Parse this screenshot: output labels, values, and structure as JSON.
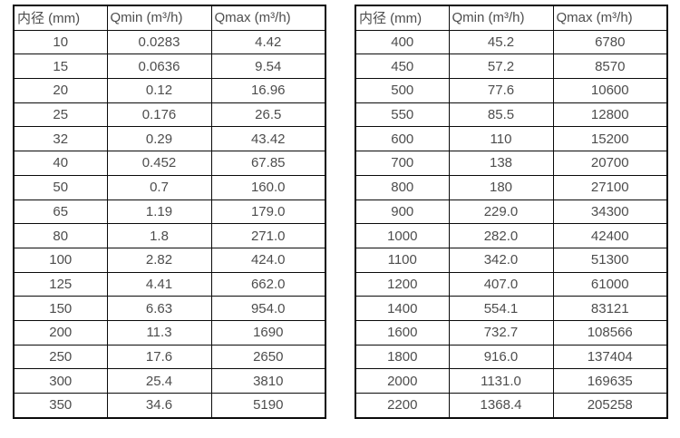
{
  "page": {
    "background": "#ffffff",
    "text_color": "#4d4d4d",
    "border_color": "#0a0a0a"
  },
  "tables": [
    {
      "name": "flow-table-small-diameters",
      "headers": [
        "内径 (mm)",
        "Qmin (m³/h)",
        "Qmax (m³/h)"
      ],
      "rows": [
        [
          "10",
          "0.0283",
          "4.42"
        ],
        [
          "15",
          "0.0636",
          "9.54"
        ],
        [
          "20",
          "0.12",
          "16.96"
        ],
        [
          "25",
          "0.176",
          "26.5"
        ],
        [
          "32",
          "0.29",
          "43.42"
        ],
        [
          "40",
          "0.452",
          "67.85"
        ],
        [
          "50",
          "0.7",
          "160.0"
        ],
        [
          "65",
          "1.19",
          "179.0"
        ],
        [
          "80",
          "1.8",
          "271.0"
        ],
        [
          "100",
          "2.82",
          "424.0"
        ],
        [
          "125",
          "4.41",
          "662.0"
        ],
        [
          "150",
          "6.63",
          "954.0"
        ],
        [
          "200",
          "11.3",
          "1690"
        ],
        [
          "250",
          "17.6",
          "2650"
        ],
        [
          "300",
          "25.4",
          "3810"
        ],
        [
          "350",
          "34.6",
          "5190"
        ]
      ]
    },
    {
      "name": "flow-table-large-diameters",
      "headers": [
        "内径 (mm)",
        "Qmin (m³/h)",
        "Qmax (m³/h)"
      ],
      "rows": [
        [
          "400",
          "45.2",
          "6780"
        ],
        [
          "450",
          "57.2",
          "8570"
        ],
        [
          "500",
          "77.6",
          "10600"
        ],
        [
          "550",
          "85.5",
          "12800"
        ],
        [
          "600",
          "110",
          "15200"
        ],
        [
          "700",
          "138",
          "20700"
        ],
        [
          "800",
          "180",
          "27100"
        ],
        [
          "900",
          "229.0",
          "34300"
        ],
        [
          "1000",
          "282.0",
          "42400"
        ],
        [
          "1100",
          "342.0",
          "51300"
        ],
        [
          "1200",
          "407.0",
          "61000"
        ],
        [
          "1400",
          "554.1",
          "83121"
        ],
        [
          "1600",
          "732.7",
          "108566"
        ],
        [
          "1800",
          "916.0",
          "137404"
        ],
        [
          "2000",
          "1131.0",
          "169635"
        ],
        [
          "2200",
          "1368.4",
          "205258"
        ]
      ]
    }
  ]
}
